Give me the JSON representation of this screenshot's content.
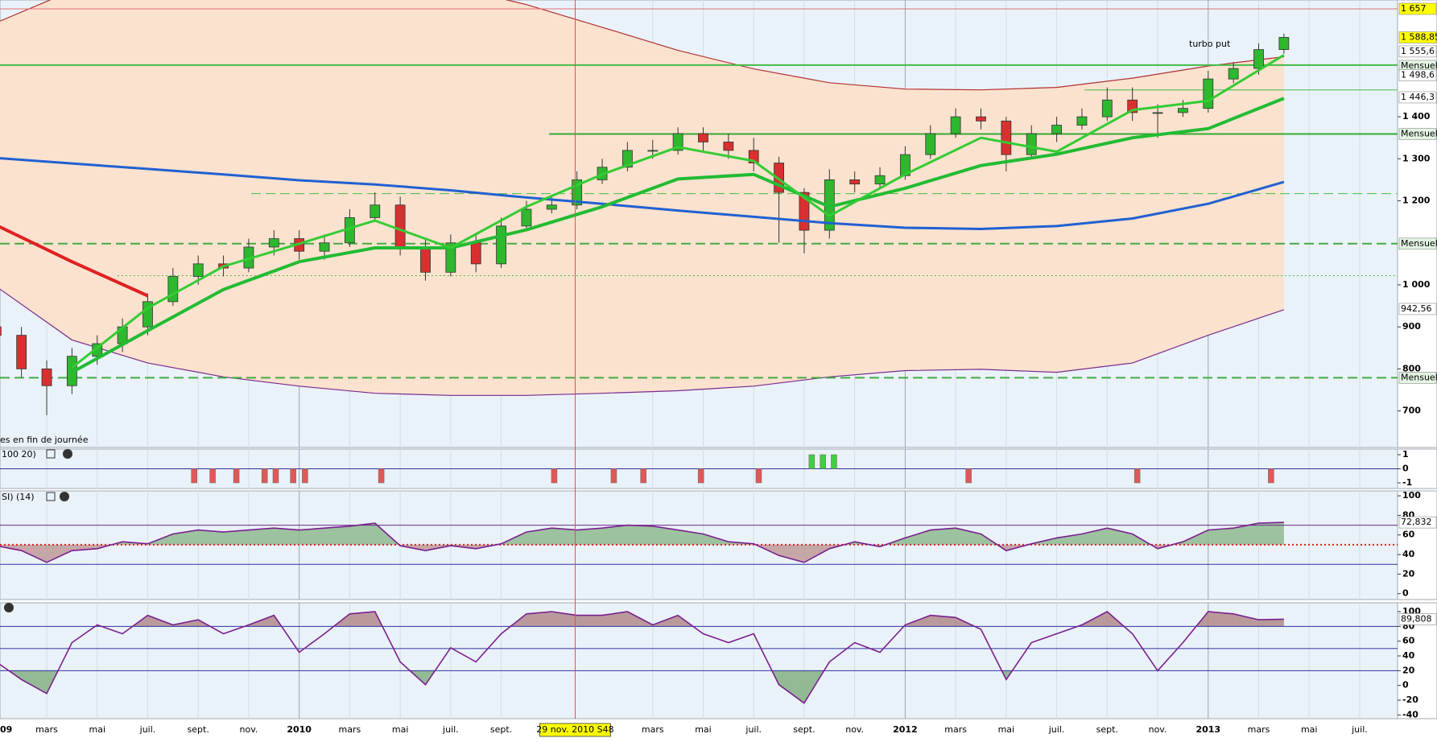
{
  "chart_data": [
    {
      "type": "candlestick",
      "xlim": [
        0.15,
        55.5
      ],
      "ylim": [
        613,
        1678
      ],
      "xticks": [
        {
          "value": 0,
          "label": "09",
          "bold": true
        },
        {
          "value": 2,
          "label": "mars"
        },
        {
          "value": 4,
          "label": "mai"
        },
        {
          "value": 6,
          "label": "juil."
        },
        {
          "value": 8,
          "label": "sept."
        },
        {
          "value": 10,
          "label": "nov."
        },
        {
          "value": 12,
          "label": "2010",
          "bold": true
        },
        {
          "value": 14,
          "label": "mars"
        },
        {
          "value": 16,
          "label": "mai"
        },
        {
          "value": 18,
          "label": "juil."
        },
        {
          "value": 20,
          "label": "sept."
        },
        {
          "value": 26,
          "label": "mars"
        },
        {
          "value": 28,
          "label": "mai"
        },
        {
          "value": 30,
          "label": "juil."
        },
        {
          "value": 32,
          "label": "sept."
        },
        {
          "value": 34,
          "label": "nov."
        },
        {
          "value": 36,
          "label": "2012",
          "bold": true
        },
        {
          "value": 38,
          "label": "mars"
        },
        {
          "value": 40,
          "label": "mai"
        },
        {
          "value": 42,
          "label": "juil."
        },
        {
          "value": 44,
          "label": "sept."
        },
        {
          "value": 46,
          "label": "nov."
        },
        {
          "value": 48,
          "label": "2013",
          "bold": true
        },
        {
          "value": 50,
          "label": "mars"
        },
        {
          "value": 52,
          "label": "mai"
        },
        {
          "value": 54,
          "label": "juil."
        }
      ],
      "yticks": [
        700,
        800,
        900,
        {
          "value": 1000,
          "label": "1 000"
        },
        {
          "value": 1200,
          "label": "1 200"
        },
        {
          "value": 1300,
          "label": "1 300"
        },
        {
          "value": 1400,
          "label": "1 400"
        }
      ],
      "cursor": {
        "x": 22.93,
        "label": "29 nov. 2010 S48"
      },
      "annotation": "turbo put",
      "note": "es en fin de journée",
      "colors": {
        "up": "#2db82d",
        "down": "#d83030"
      },
      "x": [
        0,
        1,
        2,
        3,
        4,
        5,
        6,
        7,
        8,
        9,
        10,
        11,
        12,
        13,
        14,
        15,
        16,
        17,
        18,
        19,
        20,
        21,
        22,
        23,
        24,
        25,
        26,
        27,
        28,
        29,
        30,
        31,
        32,
        33,
        34,
        35,
        36,
        37,
        38,
        39,
        40,
        41,
        42,
        43,
        44,
        45,
        46,
        47,
        48,
        49,
        50,
        51
      ],
      "open": [
        900,
        880,
        800,
        760,
        830,
        860,
        900,
        960,
        1020,
        1050,
        1040,
        1090,
        1110,
        1080,
        1100,
        1160,
        1190,
        1090,
        1030,
        1100,
        1050,
        1140,
        1180,
        1190,
        1250,
        1280,
        1320,
        1320,
        1360,
        1340,
        1320,
        1290,
        1220,
        1130,
        1250,
        1240,
        1260,
        1310,
        1360,
        1400,
        1390,
        1310,
        1360,
        1380,
        1400,
        1440,
        1410,
        1410,
        1420,
        1490,
        1515,
        1560
      ],
      "high": [
        920,
        900,
        820,
        850,
        880,
        920,
        980,
        1040,
        1070,
        1070,
        1110,
        1130,
        1130,
        1120,
        1180,
        1220,
        1210,
        1110,
        1120,
        1120,
        1160,
        1200,
        1210,
        1270,
        1300,
        1340,
        1345,
        1375,
        1375,
        1360,
        1350,
        1305,
        1230,
        1275,
        1270,
        1280,
        1330,
        1380,
        1420,
        1420,
        1400,
        1380,
        1400,
        1420,
        1470,
        1470,
        1430,
        1440,
        1510,
        1530,
        1575,
        1598
      ],
      "low": [
        850,
        780,
        690,
        740,
        810,
        840,
        880,
        950,
        1000,
        1020,
        1030,
        1070,
        1060,
        1060,
        1090,
        1150,
        1070,
        1010,
        1020,
        1030,
        1040,
        1130,
        1170,
        1180,
        1240,
        1270,
        1300,
        1310,
        1320,
        1300,
        1270,
        1100,
        1075,
        1110,
        1220,
        1230,
        1250,
        1300,
        1350,
        1370,
        1270,
        1300,
        1340,
        1370,
        1390,
        1390,
        1350,
        1400,
        1410,
        1480,
        1500,
        1550
      ],
      "close": [
        880,
        800,
        760,
        830,
        860,
        900,
        960,
        1020,
        1050,
        1040,
        1090,
        1110,
        1080,
        1100,
        1160,
        1190,
        1090,
        1030,
        1100,
        1050,
        1140,
        1180,
        1190,
        1250,
        1280,
        1320,
        1320,
        1360,
        1340,
        1320,
        1290,
        1220,
        1130,
        1250,
        1240,
        1260,
        1310,
        1360,
        1400,
        1390,
        1310,
        1360,
        1380,
        1400,
        1440,
        1410,
        1410,
        1420,
        1490,
        1515,
        1560,
        1589
      ],
      "bands": {
        "x": [
          0,
          3,
          6,
          9,
          12,
          15,
          18,
          21,
          24,
          27,
          30,
          33,
          36,
          39,
          42,
          45,
          48,
          51
        ],
        "fill": "#fbe2cf",
        "upper": {
          "color": "#b03030",
          "values": [
            1624,
            1700,
            1720,
            1740,
            1740,
            1730,
            1710,
            1667,
            1613,
            1558,
            1514,
            1481,
            1466,
            1464,
            1470,
            1492,
            1521,
            1543
          ]
        },
        "lower": {
          "color": "#7a2a8a",
          "values": [
            996,
            869,
            814,
            781,
            759,
            742,
            737,
            737,
            742,
            748,
            759,
            781,
            796,
            799,
            792,
            814,
            880,
            941
          ]
        }
      },
      "lines": {
        "x": [
          0,
          3,
          6,
          9,
          12,
          15,
          18,
          21,
          24,
          27,
          30,
          33,
          36,
          39,
          42,
          45,
          48,
          51
        ],
        "series": [
          {
            "color": "#2060d0",
            "width": 3,
            "values": [
              1302,
              1289,
              1276,
              1263,
              1249,
              1239,
              1225,
              1208,
              1193,
              1177,
              1162,
              1147,
              1136,
              1133,
              1140,
              1158,
              1193,
              1245
            ]
          },
          {
            "color": "#e02020",
            "width": 4,
            "values": [
              1142,
              1055,
              974,
              null,
              null,
              null,
              null,
              null,
              null,
              null,
              null,
              null,
              null,
              null,
              null,
              null,
              null,
              null
            ]
          },
          {
            "color": "#22bb33",
            "width": 4,
            "values": [
              null,
              792,
              891,
              989,
              1055,
              1088,
              1088,
              1131,
              1186,
              1252,
              1263,
              1186,
              1230,
              1284,
              1311,
              1350,
              1372,
              1444
            ]
          },
          {
            "color": "#33cc33",
            "width": 3,
            "values": [
              null,
              803,
              945,
              1044,
              1098,
              1153,
              1088,
              1186,
              1263,
              1328,
              1295,
              1164,
              1263,
              1350,
              1317,
              1416,
              1438,
              1547
            ]
          }
        ]
      },
      "levels": [
        {
          "value": 1657,
          "color": "#e07070",
          "style": "solid",
          "width": 1
        },
        {
          "value": 1523,
          "color": "#44bb44",
          "style": "solid",
          "width": 2
        },
        {
          "value": 1464,
          "from": 43.1,
          "color": "#44bb44",
          "style": "solid",
          "width": 1
        },
        {
          "value": 1359,
          "from": 21.9,
          "color": "#33aa33",
          "style": "solid",
          "width": 2
        },
        {
          "value": 1217,
          "from": 10.1,
          "color": "#44bb44",
          "style": "dash",
          "width": 1
        },
        {
          "value": 1098,
          "color": "#44aa44",
          "style": "dash",
          "width": 2
        },
        {
          "value": 1022,
          "from": 4.8,
          "color": "#44bb44",
          "style": "dotted",
          "width": 1
        },
        {
          "value": 779,
          "color": "#44aa44",
          "style": "dash",
          "width": 2
        }
      ],
      "axis_boxes": [
        {
          "value": 1657,
          "label": "1 657",
          "bg": "#ffff00",
          "color": "#000000"
        },
        {
          "value": 1588.85,
          "label": "1 588,85",
          "bg": "#ffff00",
          "color": "#000000"
        },
        {
          "value": 1555.6,
          "label": "1 555,6",
          "bg": "#ffffff",
          "color": "#c00000"
        },
        {
          "value": 1521,
          "label": "Mensuel",
          "bg": "#e2f4e2",
          "color": "#000000"
        },
        {
          "value": 1498.6,
          "label": "1 498,6",
          "bg": "#ffffff",
          "color": "#d060a0"
        },
        {
          "value": 1446.3,
          "label": "1 446,3",
          "bg": "#ffffff",
          "color": "#00a000"
        },
        {
          "value": 1359,
          "label": "Mensuel",
          "bg": "#e2f4e2",
          "color": "#000000"
        },
        {
          "value": 1098,
          "label": "Mensuel",
          "bg": "#e2f4e2",
          "color": "#000000"
        },
        {
          "value": 942.56,
          "label": "942,56",
          "bg": "#ffffff",
          "color": "#8040a0"
        },
        {
          "value": 779,
          "label": "Mensuel",
          "bg": "#e2f4e2",
          "color": "#000000"
        }
      ]
    },
    {
      "type": "signal",
      "label": "100 20)",
      "ylim": [
        -1.4,
        1.4
      ],
      "yticks": [
        1,
        0,
        -1
      ],
      "colors": {
        "up": "#44cc44",
        "down": "#e05858"
      },
      "levels": [
        {
          "value": 0,
          "color": "#3030a0",
          "style": "solid",
          "width": 1
        }
      ],
      "x": [
        7.84,
        8.57,
        9.51,
        10.63,
        11.07,
        11.76,
        12.23,
        15.25,
        22.1,
        24.46,
        25.63,
        27.91,
        30.2,
        32.3,
        32.74,
        33.18,
        38.51,
        45.19,
        50.49
      ],
      "values": [
        -1,
        -1,
        -1,
        -1,
        -1,
        -1,
        -1,
        -1,
        -1,
        -1,
        -1,
        -1,
        -1,
        1,
        1,
        1,
        -1,
        -1,
        -1
      ]
    },
    {
      "type": "line",
      "label": "SI) (14)",
      "ylim": [
        -6,
        105
      ],
      "yticks": [
        0,
        20,
        40,
        60,
        80,
        100
      ],
      "color": "#7a1f8f",
      "fills": [
        {
          "base": 50,
          "side": "above",
          "color": "#8fba8f"
        },
        {
          "base": 50,
          "side": "below",
          "color": "#c09a9a"
        }
      ],
      "levels": [
        {
          "value": 70,
          "color": "#6a2a8a",
          "style": "solid",
          "width": 1
        },
        {
          "value": 50,
          "color": "#e02020",
          "style": "dotted",
          "width": 2
        },
        {
          "value": 30,
          "color": "#3030a0",
          "style": "solid",
          "width": 1
        }
      ],
      "axis_boxes": [
        {
          "value": 72.832,
          "label": "72,832",
          "bg": "#ffffff",
          "color": "#8040a0"
        }
      ],
      "x": [
        0,
        1,
        2,
        3,
        4,
        5,
        6,
        7,
        8,
        9,
        10,
        11,
        12,
        13,
        14,
        15,
        16,
        17,
        18,
        19,
        20,
        21,
        22,
        23,
        24,
        25,
        26,
        27,
        28,
        29,
        30,
        31,
        32,
        33,
        34,
        35,
        36,
        37,
        38,
        39,
        40,
        41,
        42,
        43,
        44,
        45,
        46,
        47,
        48,
        49,
        50,
        51
      ],
      "values": [
        49,
        44,
        32,
        44,
        46,
        53,
        51,
        61,
        65,
        63,
        65,
        67,
        65,
        67,
        69,
        72,
        49,
        44,
        49,
        46,
        51,
        63,
        67,
        65,
        67,
        70,
        69,
        65,
        61,
        53,
        51,
        39,
        32,
        46,
        53,
        48,
        57,
        65,
        67,
        61,
        44,
        51,
        57,
        61,
        67,
        61,
        46,
        53,
        65,
        67,
        72,
        72.832
      ]
    },
    {
      "type": "line",
      "ylim": [
        -45,
        112
      ],
      "yticks": [
        -40,
        -20,
        0,
        20,
        40,
        60,
        80,
        100
      ],
      "color": "#7a1f8f",
      "fills": [
        {
          "base": 80,
          "side": "above",
          "color": "#b08a8a"
        },
        {
          "base": 20,
          "side": "below",
          "color": "#84b084"
        }
      ],
      "levels": [
        {
          "value": 80,
          "color": "#3030a0",
          "style": "solid",
          "width": 1
        },
        {
          "value": 50,
          "color": "#3030a0",
          "style": "solid",
          "width": 1
        },
        {
          "value": 20,
          "color": "#3030a0",
          "style": "solid",
          "width": 1
        }
      ],
      "axis_boxes": [
        {
          "value": 89.808,
          "label": "89,808",
          "bg": "#ffffff",
          "color": "#8040a0"
        }
      ],
      "x": [
        0,
        1,
        2,
        3,
        4,
        5,
        6,
        7,
        8,
        9,
        10,
        11,
        12,
        13,
        14,
        15,
        16,
        17,
        18,
        19,
        20,
        21,
        22,
        23,
        24,
        25,
        26,
        27,
        28,
        29,
        30,
        31,
        32,
        33,
        34,
        35,
        36,
        37,
        38,
        39,
        40,
        41,
        42,
        43,
        44,
        45,
        46,
        47,
        48,
        49,
        50,
        51
      ],
      "values": [
        32,
        8,
        -11,
        58,
        82,
        70,
        95,
        82,
        89,
        70,
        82,
        95,
        45,
        70,
        97,
        100,
        32,
        1,
        51,
        32,
        70,
        97,
        100,
        95,
        95,
        100,
        82,
        95,
        70,
        58,
        70,
        1,
        -24,
        32,
        58,
        45,
        82,
        95,
        92,
        76,
        8,
        58,
        70,
        82,
        100,
        70,
        20,
        58,
        100,
        97,
        89,
        89.808
      ]
    }
  ]
}
